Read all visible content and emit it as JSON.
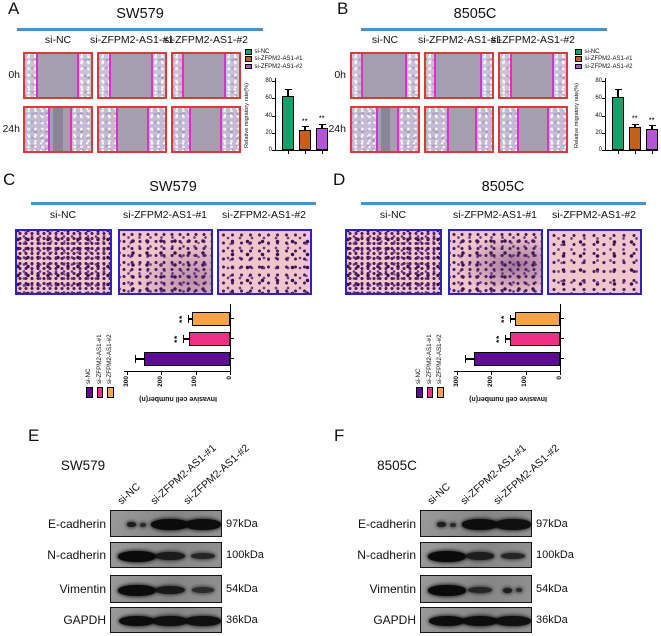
{
  "styles": {
    "header_line": "#4a93c8",
    "wound_border": "#d93a3a",
    "wound_marker": "#e32cc8",
    "transwell_border": "#2b23c4"
  },
  "panels": {
    "A": {
      "letter": "A",
      "title": "SW579",
      "columns": [
        "si-NC",
        "si-ZFPM2-AS1-#1",
        "si-ZFPM2-AS1-#2"
      ],
      "rows": [
        "0h",
        "24h"
      ]
    },
    "B": {
      "letter": "B",
      "title": "8505C",
      "columns": [
        "si-NC",
        "si-ZFPM2-AS1-#1",
        "si-ZFPM2-AS1-#2"
      ],
      "rows": [
        "0h",
        "24h"
      ]
    },
    "C": {
      "letter": "C",
      "title": "SW579",
      "columns": [
        "si-NC",
        "si-ZFPM2-AS1-#1",
        "si-ZFPM2-AS1-#2"
      ]
    },
    "D": {
      "letter": "D",
      "title": "8505C",
      "columns": [
        "si-NC",
        "si-ZFPM2-AS1-#1",
        "si-ZFPM2-AS1-#2"
      ]
    },
    "E": {
      "letter": "E",
      "cell_line": "SW579",
      "lanes": [
        "si-NC",
        "si-ZFPM2-AS1-#1",
        "si-ZFPM2-AS1-#2"
      ],
      "rows": [
        {
          "protein": "E-cadherin",
          "mw": "97kDa",
          "intensities": [
            0.2,
            1,
            0.95
          ]
        },
        {
          "protein": "N-cadherin",
          "mw": "100kDa",
          "intensities": [
            1,
            0.65,
            0.45
          ]
        },
        {
          "protein": "Vimentin",
          "mw": "54kDa",
          "intensities": [
            1,
            0.7,
            0.35
          ]
        },
        {
          "protein": "GAPDH",
          "mw": "36kDa",
          "intensities": [
            0.95,
            0.9,
            0.9
          ]
        }
      ]
    },
    "F": {
      "letter": "F",
      "cell_line": "8505C",
      "lanes": [
        "si-NC",
        "si-ZFPM2-AS1-#1",
        "si-ZFPM2-AS1-#2"
      ],
      "rows": [
        {
          "protein": "E-cadherin",
          "mw": "97kDa",
          "intensities": [
            0.25,
            0.95,
            0.9
          ]
        },
        {
          "protein": "N-cadherin",
          "mw": "100kDa",
          "intensities": [
            1,
            0.6,
            0.45
          ]
        },
        {
          "protein": "Vimentin",
          "mw": "54kDa",
          "intensities": [
            1,
            0.45,
            0.12
          ]
        },
        {
          "protein": "GAPDH",
          "mw": "36kDa",
          "intensities": [
            0.95,
            0.95,
            0.9
          ]
        }
      ]
    }
  },
  "chart_data": [
    {
      "panel": "A",
      "type": "bar",
      "orientation": "vertical",
      "rotation_deg": 0,
      "categories": [
        "si-NC",
        "si-ZFPM2-AS1-#1",
        "si-ZFPM2-AS1-#2"
      ],
      "legend": [
        "si-NC",
        "si-ZFPM2-AS1-#1",
        "si-ZFPM2-AS1-#2"
      ],
      "legend_position": "top-left",
      "values": [
        63,
        23,
        26
      ],
      "errors": [
        7,
        4,
        4
      ],
      "significance": [
        "",
        "**",
        "**"
      ],
      "ylabel": "Relative migratory rate(%)",
      "ylim": [
        0,
        80
      ],
      "yticks": [
        0,
        20,
        40,
        60,
        80
      ],
      "bar_colors": [
        "#16a06c",
        "#c4601a",
        "#b355d4"
      ],
      "grid": false
    },
    {
      "panel": "B",
      "type": "bar",
      "orientation": "vertical",
      "rotation_deg": 0,
      "categories": [
        "si-NC",
        "si-ZFPM2-AS1-#1",
        "si-ZFPM2-AS1-#2"
      ],
      "legend": [
        "si-NC",
        "si-ZFPM2-AS1-#1",
        "si-ZFPM2-AS1-#2"
      ],
      "legend_position": "top-left",
      "values": [
        62,
        27,
        24
      ],
      "errors": [
        8,
        3,
        4
      ],
      "significance": [
        "",
        "**",
        "**"
      ],
      "ylabel": "Relative migratory rate(%)",
      "ylim": [
        0,
        80
      ],
      "yticks": [
        0,
        20,
        40,
        60,
        80
      ],
      "bar_colors": [
        "#16a06c",
        "#c4601a",
        "#b355d4"
      ],
      "grid": false
    },
    {
      "panel": "C",
      "type": "bar",
      "orientation": "vertical",
      "rotation_deg": -90,
      "categories": [
        "si-NC",
        "si-ZFPM2-AS1-#1",
        "si-ZFPM2-AS1-#2"
      ],
      "legend": [
        "si-NC",
        "si-ZFPM2-AS1-#1",
        "si-ZFPM2-AS1-#2"
      ],
      "legend_position": "top-left",
      "values": [
        250,
        120,
        110
      ],
      "errors": [
        25,
        15,
        12
      ],
      "significance": [
        "",
        "**",
        "**"
      ],
      "ylabel": "Invasive cell number(n)",
      "ylim": [
        0,
        300
      ],
      "yticks": [
        0,
        100,
        200,
        300
      ],
      "bar_colors": [
        "#5e0d92",
        "#ee2e87",
        "#f7a34a"
      ],
      "grid": false
    },
    {
      "panel": "D",
      "type": "bar",
      "orientation": "vertical",
      "rotation_deg": -90,
      "categories": [
        "si-NC",
        "si-ZFPM2-AS1-#1",
        "si-ZFPM2-AS1-#2"
      ],
      "legend": [
        "si-NC",
        "si-ZFPM2-AS1-#1",
        "si-ZFPM2-AS1-#2"
      ],
      "legend_position": "top-left",
      "values": [
        250,
        145,
        130
      ],
      "errors": [
        25,
        15,
        15
      ],
      "significance": [
        "",
        "**",
        "**"
      ],
      "ylabel": "Invasive cell number(n)",
      "ylim": [
        0,
        300
      ],
      "yticks": [
        0,
        100,
        200,
        300
      ],
      "bar_colors": [
        "#5e0d92",
        "#ee2e87",
        "#f7a34a"
      ],
      "grid": false
    }
  ]
}
